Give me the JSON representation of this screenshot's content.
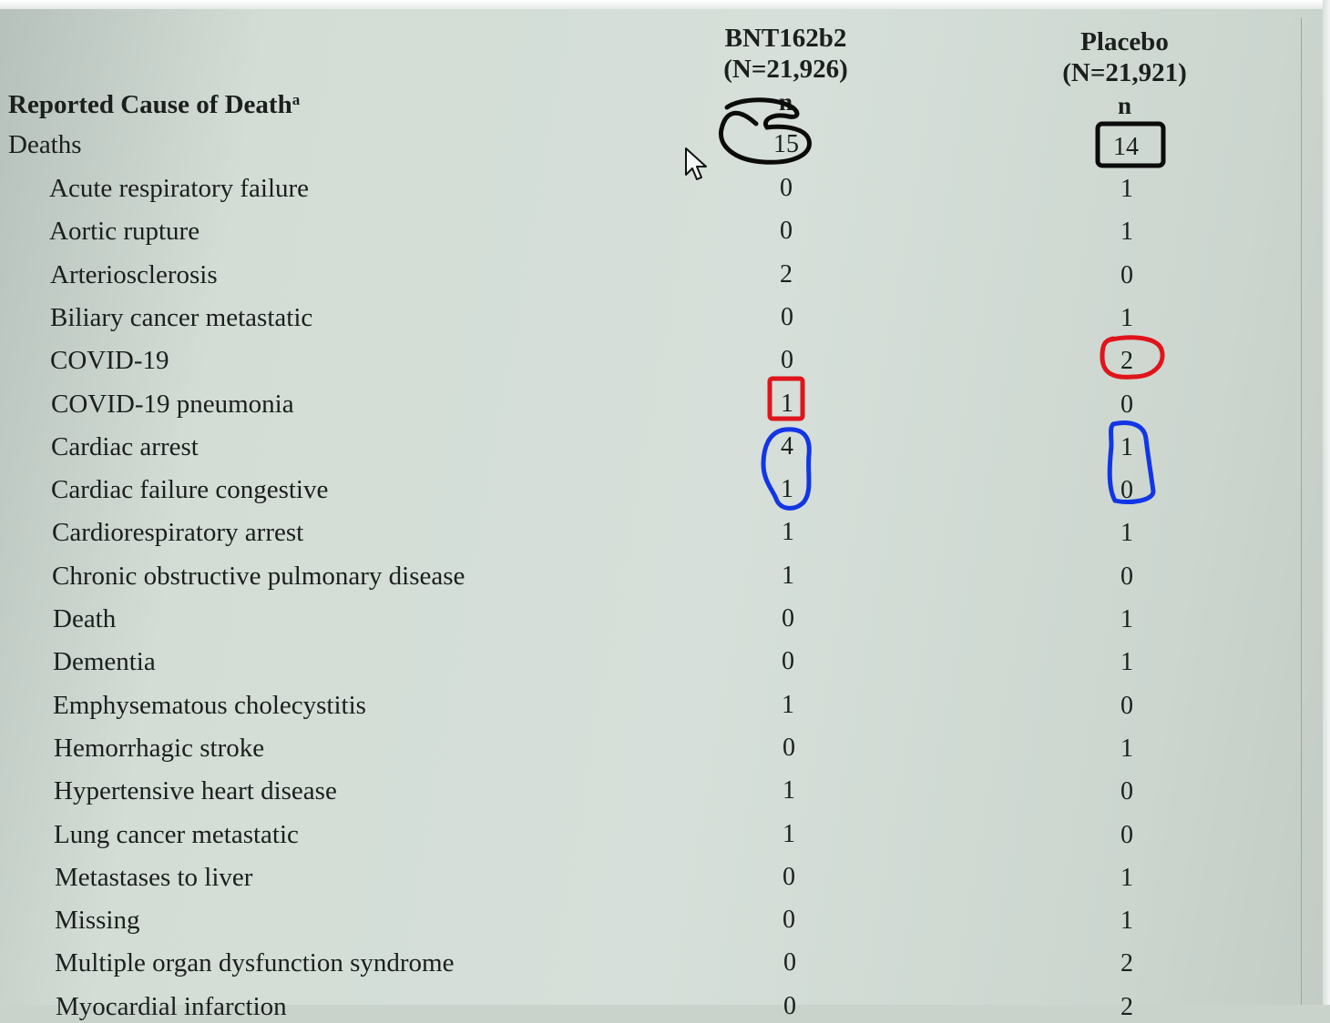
{
  "table": {
    "title": "Reported Cause of Death",
    "title_footnote": "a",
    "columns": [
      {
        "name": "BNT162b2",
        "n_total": "(N=21,926)",
        "n_label": "n"
      },
      {
        "name": "Placebo",
        "n_total": "(N=21,921)",
        "n_label": "n"
      }
    ],
    "total_row": {
      "label": "Deaths",
      "bnt": "15",
      "placebo": "14"
    },
    "rows": [
      {
        "label": "Acute respiratory failure",
        "bnt": "0",
        "placebo": "1"
      },
      {
        "label": "Aortic rupture",
        "bnt": "0",
        "placebo": "1"
      },
      {
        "label": "Arteriosclerosis",
        "bnt": "2",
        "placebo": "0"
      },
      {
        "label": "Biliary cancer metastatic",
        "bnt": "0",
        "placebo": "1"
      },
      {
        "label": "COVID-19",
        "bnt": "0",
        "placebo": "2"
      },
      {
        "label": "COVID-19 pneumonia",
        "bnt": "1",
        "placebo": "0"
      },
      {
        "label": "Cardiac arrest",
        "bnt": "4",
        "placebo": "1"
      },
      {
        "label": "Cardiac failure congestive",
        "bnt": "1",
        "placebo": "0"
      },
      {
        "label": "Cardiorespiratory arrest",
        "bnt": "1",
        "placebo": "1"
      },
      {
        "label": "Chronic obstructive pulmonary disease",
        "bnt": "1",
        "placebo": "0"
      },
      {
        "label": "Death",
        "bnt": "0",
        "placebo": "1"
      },
      {
        "label": "Dementia",
        "bnt": "0",
        "placebo": "1"
      },
      {
        "label": "Emphysematous cholecystitis",
        "bnt": "1",
        "placebo": "0"
      },
      {
        "label": "Hemorrhagic stroke",
        "bnt": "0",
        "placebo": "1"
      },
      {
        "label": "Hypertensive heart disease",
        "bnt": "1",
        "placebo": "0"
      },
      {
        "label": "Lung cancer metastatic",
        "bnt": "1",
        "placebo": "0"
      },
      {
        "label": "Metastases to liver",
        "bnt": "0",
        "placebo": "1"
      },
      {
        "label": "Missing",
        "bnt": "0",
        "placebo": "1"
      },
      {
        "label": "Multiple organ dysfunction syndrome",
        "bnt": "0",
        "placebo": "2"
      },
      {
        "label": "Myocardial infarction",
        "bnt": "0",
        "placebo": "2"
      }
    ]
  },
  "annotation_colors": {
    "black": "#0b0b0b",
    "red": "#e0141b",
    "blue": "#1236e6"
  },
  "icons": {
    "cursor": "mouse-pointer-icon"
  }
}
